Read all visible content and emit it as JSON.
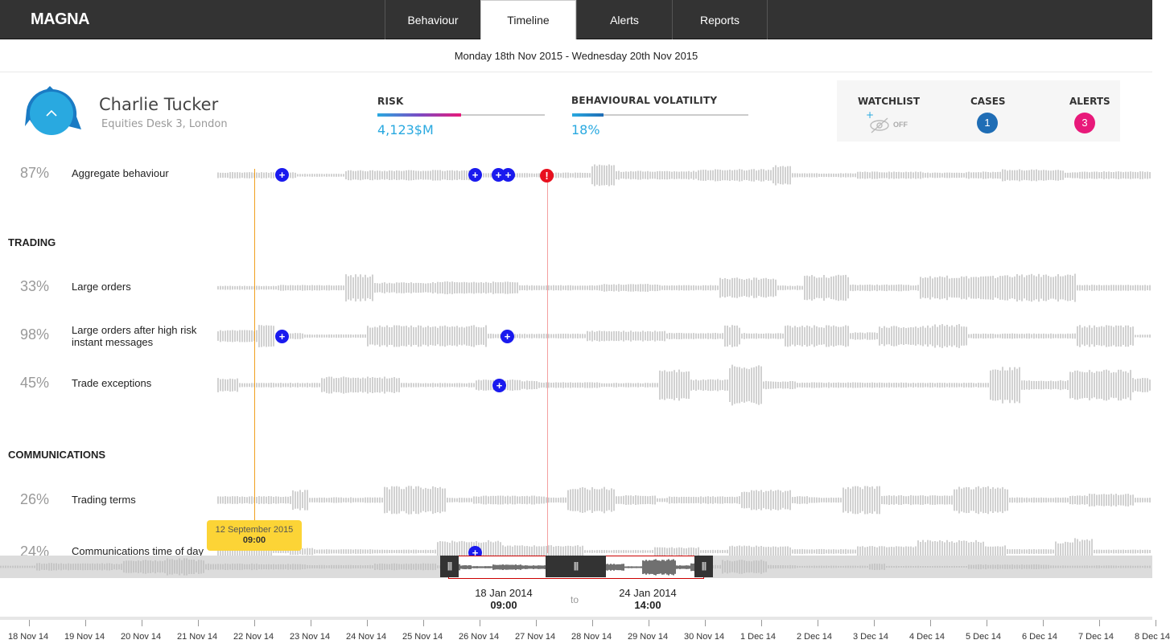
{
  "app": {
    "title": "MAGNA"
  },
  "nav": {
    "tabs": [
      "Behaviour",
      "Timeline",
      "Alerts",
      "Reports"
    ],
    "active": "Timeline"
  },
  "date_range": "Monday 18th Nov 2015 - Wednesday 20th Nov 2015",
  "profile": {
    "name": "Charlie Tucker",
    "desk": "Equities Desk 3, London"
  },
  "risk": {
    "label": "RISK",
    "value": "4,123$M",
    "fill": 0.5
  },
  "volatility": {
    "label": "BEHAVIOURAL VOLATILITY",
    "value": "18%",
    "fill": 0.18
  },
  "stats": {
    "watchlist": {
      "label": "WATCHLIST",
      "state": "OFF",
      "icon": "eye-off-icon"
    },
    "cases": {
      "label": "CASES",
      "count": "1",
      "color": "#1f6db5"
    },
    "alerts": {
      "label": "ALERTS",
      "count": "3",
      "color": "#e8197a"
    }
  },
  "aggregate": {
    "pct": "87%",
    "label": "Aggregate behaviour"
  },
  "sections": {
    "trading": {
      "title": "TRADING",
      "rows": [
        {
          "pct": "33%",
          "label": "Large orders"
        },
        {
          "pct": "98%",
          "label": "Large orders after high risk instant messages"
        },
        {
          "pct": "45%",
          "label": "Trade exceptions"
        }
      ]
    },
    "communications": {
      "title": "COMMUNICATIONS",
      "rows": [
        {
          "pct": "26%",
          "label": "Trading terms"
        },
        {
          "pct": "24%",
          "label": "Communications time of day"
        }
      ]
    }
  },
  "cursor_tooltip": {
    "date": "12 September 2015",
    "time": "09:00"
  },
  "range": {
    "from": {
      "date": "18 Jan 2014",
      "time": "09:00"
    },
    "separator": "to",
    "to": {
      "date": "24 Jan 2014",
      "time": "14:00"
    }
  },
  "axis": {
    "labels": [
      "18 Nov 14",
      "19 Nov 14",
      "20 Nov 14",
      "21 Nov 14",
      "22 Nov 14",
      "23 Nov 14",
      "24 Nov 14",
      "25 Nov 14",
      "26 Nov 14",
      "27 Nov 14",
      "28 Nov 14",
      "29 Nov 14",
      "30 Nov 14",
      "1 Dec 14",
      "2 Dec 14",
      "3 Dec 14",
      "4 Dec 14",
      "5 Dec 14",
      "6 Dec 14",
      "7 Dec 14",
      "8 Dec 14"
    ]
  },
  "colors": {
    "accent": "#29a9e0",
    "marker": "#1a1aee",
    "alert": "#e8101e",
    "cursor": "#f0a020",
    "tooltip": "#fcd436"
  }
}
